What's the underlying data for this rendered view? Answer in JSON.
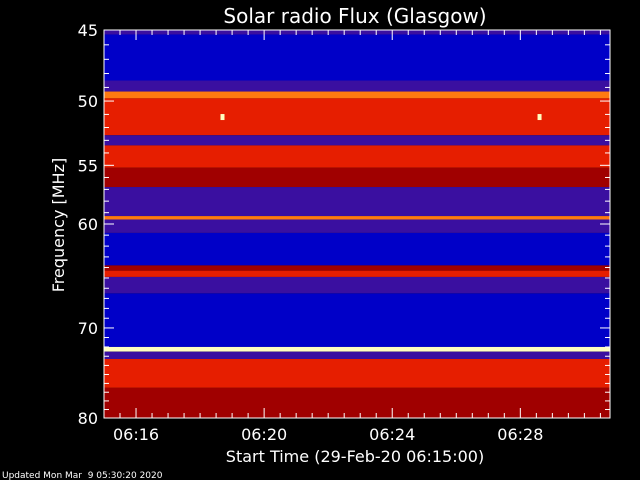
{
  "chart_data": {
    "type": "heatmap",
    "title": "Solar radio Flux (Glasgow)",
    "xlabel": "Start Time (29-Feb-20 06:15:00)",
    "ylabel": "Frequency [MHz]",
    "x_start_minutes": 0,
    "x_end_minutes": 15.8,
    "ylim": [
      45,
      80
    ],
    "log_y": true,
    "x_ticks": [
      {
        "label": "06:16",
        "minutes": 1
      },
      {
        "label": "06:20",
        "minutes": 5
      },
      {
        "label": "06:24",
        "minutes": 9
      },
      {
        "label": "06:28",
        "minutes": 13
      }
    ],
    "y_ticks": [
      45,
      50,
      55,
      60,
      70,
      80
    ],
    "colors": {
      "low": "#0000c8",
      "mid_low": "#3a0fa0",
      "mid": "#a00000",
      "high": "#e61e00",
      "hot": "#ff7a10",
      "peak": "#ffffc0"
    },
    "bands": [
      {
        "f_start": 45.0,
        "f_end": 45.3,
        "level": "mid_low"
      },
      {
        "f_start": 45.3,
        "f_end": 48.5,
        "level": "low"
      },
      {
        "f_start": 48.5,
        "f_end": 49.3,
        "level": "mid_low"
      },
      {
        "f_start": 49.3,
        "f_end": 49.8,
        "level": "hot"
      },
      {
        "f_start": 49.8,
        "f_end": 52.6,
        "level": "high"
      },
      {
        "f_start": 52.6,
        "f_end": 53.4,
        "level": "mid_low"
      },
      {
        "f_start": 53.4,
        "f_end": 55.2,
        "level": "high"
      },
      {
        "f_start": 55.2,
        "f_end": 56.8,
        "level": "mid"
      },
      {
        "f_start": 56.8,
        "f_end": 59.3,
        "level": "mid_low"
      },
      {
        "f_start": 59.3,
        "f_end": 59.6,
        "level": "hot"
      },
      {
        "f_start": 59.6,
        "f_end": 60.8,
        "level": "mid_low"
      },
      {
        "f_start": 60.8,
        "f_end": 63.8,
        "level": "low"
      },
      {
        "f_start": 63.8,
        "f_end": 64.3,
        "level": "mid"
      },
      {
        "f_start": 64.3,
        "f_end": 64.9,
        "level": "high"
      },
      {
        "f_start": 64.9,
        "f_end": 66.5,
        "level": "mid_low"
      },
      {
        "f_start": 66.5,
        "f_end": 72.0,
        "level": "low"
      },
      {
        "f_start": 72.0,
        "f_end": 72.5,
        "level": "peak"
      },
      {
        "f_start": 72.5,
        "f_end": 73.3,
        "level": "mid_low"
      },
      {
        "f_start": 73.3,
        "f_end": 76.5,
        "level": "high"
      },
      {
        "f_start": 76.5,
        "f_end": 80.0,
        "level": "mid"
      }
    ],
    "bursts": [
      {
        "minutes": 3.7,
        "freq": 51.2,
        "level": "peak"
      },
      {
        "minutes": 13.6,
        "freq": 51.2,
        "level": "peak"
      }
    ]
  },
  "footer": "Updated Mon Mar  9 05:30:20 2020"
}
